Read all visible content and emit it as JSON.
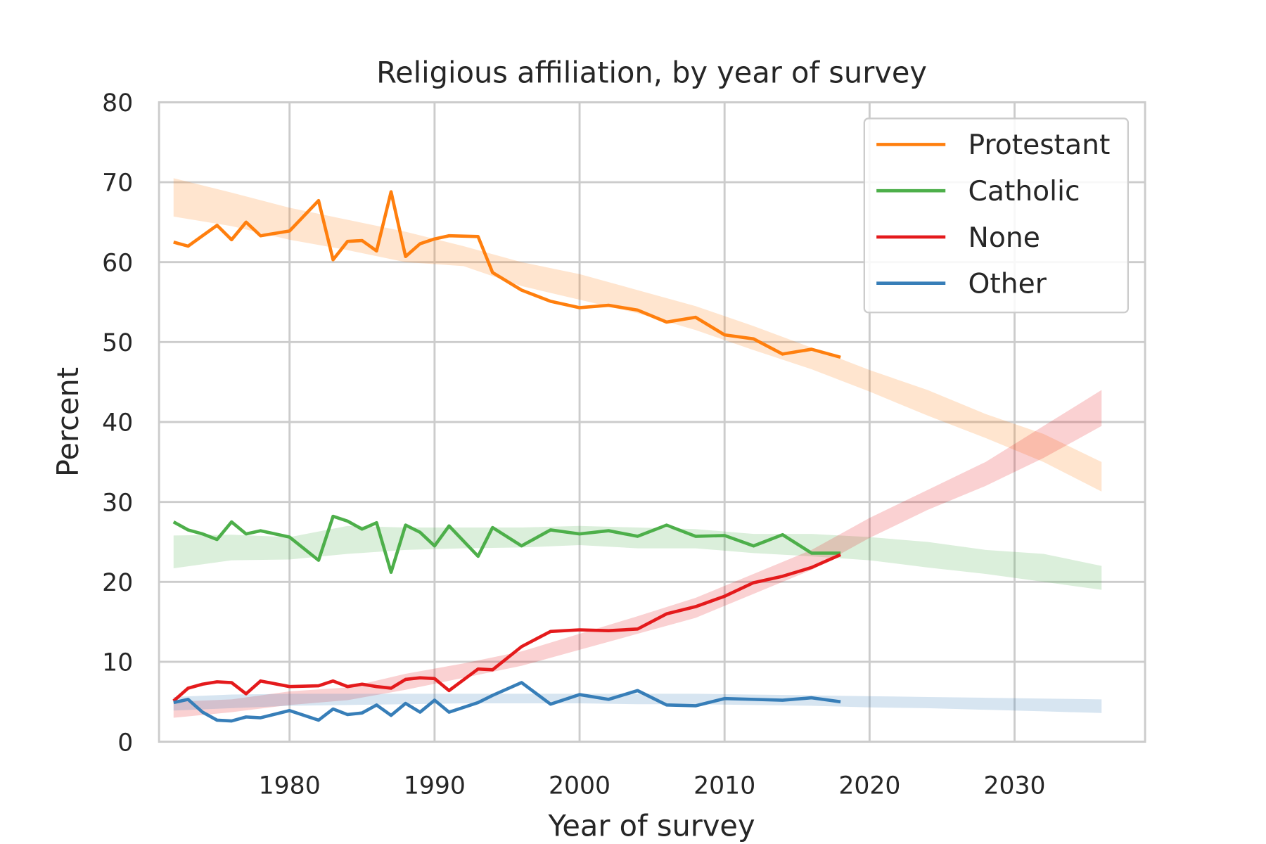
{
  "chart_data": {
    "type": "line",
    "title": "Religious affiliation, by year of survey",
    "xlabel": "Year of survey",
    "ylabel": "Percent",
    "xlim": [
      1971,
      2039
    ],
    "ylim": [
      0,
      80
    ],
    "xticks": [
      1980,
      1990,
      2000,
      2010,
      2020,
      2030
    ],
    "yticks": [
      0,
      10,
      20,
      30,
      40,
      50,
      60,
      70,
      80
    ],
    "grid": true,
    "legend_position": "top-right",
    "x": [
      1972,
      1973,
      1974,
      1975,
      1976,
      1977,
      1978,
      1980,
      1982,
      1983,
      1984,
      1985,
      1986,
      1987,
      1988,
      1989,
      1990,
      1991,
      1993,
      1994,
      1996,
      1998,
      2000,
      2002,
      2004,
      2006,
      2008,
      2010,
      2012,
      2014,
      2016,
      2018
    ],
    "series": [
      {
        "name": "Protestant",
        "color": "#ff7f0e",
        "values": [
          62.5,
          62.0,
          63.3,
          64.6,
          62.8,
          65.0,
          63.3,
          63.9,
          67.7,
          60.3,
          62.6,
          62.7,
          61.4,
          68.8,
          60.7,
          62.3,
          62.9,
          63.3,
          63.2,
          58.7,
          56.5,
          55.1,
          54.3,
          54.6,
          54.0,
          52.5,
          53.1,
          50.9,
          50.4,
          48.5,
          49.1,
          48.1
        ]
      },
      {
        "name": "Catholic",
        "color": "#4daf4a",
        "values": [
          27.5,
          26.5,
          26.0,
          25.3,
          27.5,
          26.0,
          26.4,
          25.6,
          22.7,
          28.2,
          27.6,
          26.6,
          27.4,
          21.2,
          27.1,
          26.2,
          24.5,
          27.0,
          23.2,
          26.8,
          24.5,
          26.5,
          26.0,
          26.4,
          25.7,
          27.1,
          25.7,
          25.8,
          24.5,
          25.9,
          23.6,
          23.6
        ]
      },
      {
        "name": "None",
        "color": "#e41a1c",
        "values": [
          5.1,
          6.7,
          7.2,
          7.5,
          7.4,
          6.0,
          7.6,
          6.9,
          7.0,
          7.6,
          6.9,
          7.2,
          6.9,
          6.7,
          7.8,
          8.0,
          7.9,
          6.4,
          9.1,
          9.0,
          11.9,
          13.8,
          14.0,
          13.9,
          14.1,
          16.0,
          16.9,
          18.2,
          19.9,
          20.7,
          21.8,
          23.4
        ]
      },
      {
        "name": "Other",
        "color": "#377eb8",
        "values": [
          4.9,
          5.3,
          3.7,
          2.7,
          2.6,
          3.1,
          3.0,
          3.9,
          2.7,
          4.1,
          3.4,
          3.6,
          4.6,
          3.3,
          4.8,
          3.7,
          5.2,
          3.7,
          4.9,
          5.8,
          7.4,
          4.7,
          5.9,
          5.3,
          6.4,
          4.6,
          4.5,
          5.4,
          5.3,
          5.2,
          5.5,
          5.0
        ]
      }
    ],
    "bands": {
      "x": [
        1972,
        1976,
        1980,
        1984,
        1988,
        1992,
        1996,
        2000,
        2004,
        2008,
        2012,
        2016,
        2020,
        2024,
        2028,
        2032,
        2036
      ],
      "Protestant": {
        "low": [
          65.7,
          64.5,
          62.8,
          61.5,
          60.0,
          59.5,
          57.0,
          55.3,
          53.6,
          51.5,
          49.0,
          46.6,
          43.8,
          40.8,
          38.0,
          35.0,
          31.3
        ],
        "high": [
          70.5,
          68.7,
          66.8,
          65.3,
          63.8,
          62.0,
          60.0,
          58.5,
          56.5,
          54.5,
          52.0,
          49.3,
          46.5,
          44.0,
          41.0,
          38.5,
          35.0
        ]
      },
      "Catholic": {
        "low": [
          21.7,
          22.7,
          22.8,
          23.5,
          24.0,
          24.2,
          24.3,
          24.6,
          24.2,
          24.2,
          23.6,
          23.2,
          22.7,
          21.8,
          21.0,
          20.0,
          19.0
        ],
        "high": [
          25.8,
          25.9,
          25.6,
          27.0,
          26.8,
          26.8,
          26.8,
          27.0,
          26.8,
          26.6,
          26.0,
          26.0,
          25.6,
          25.0,
          24.0,
          23.5,
          22.0
        ]
      },
      "None": {
        "low": [
          3.0,
          3.7,
          4.6,
          5.2,
          6.5,
          8.0,
          9.5,
          11.5,
          13.5,
          15.5,
          18.5,
          21.5,
          25.5,
          29.0,
          32.0,
          35.5,
          39.5
        ],
        "high": [
          5.0,
          5.3,
          6.3,
          6.8,
          8.5,
          9.8,
          11.3,
          13.5,
          15.7,
          18.0,
          21.0,
          24.0,
          28.0,
          31.5,
          35.0,
          39.5,
          44.0
        ]
      },
      "Other": {
        "low": [
          3.9,
          4.2,
          4.5,
          4.6,
          4.7,
          4.8,
          4.8,
          4.8,
          4.7,
          4.7,
          4.6,
          4.5,
          4.3,
          4.2,
          4.0,
          3.8,
          3.6
        ],
        "high": [
          5.6,
          5.9,
          6.0,
          6.0,
          6.0,
          6.0,
          6.0,
          6.0,
          6.0,
          6.0,
          5.9,
          5.8,
          5.7,
          5.6,
          5.5,
          5.4,
          5.3
        ]
      }
    }
  }
}
